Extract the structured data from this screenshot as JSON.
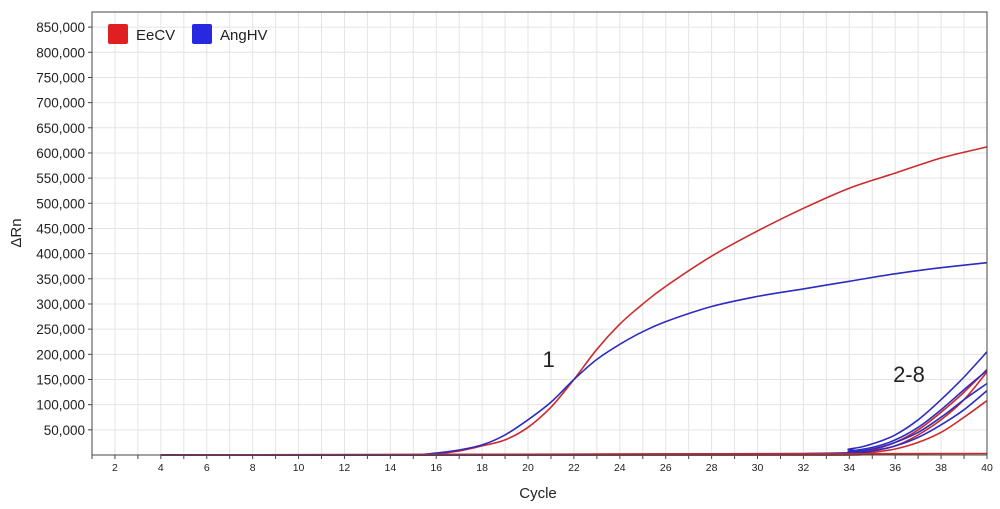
{
  "chart_data": {
    "type": "line",
    "xlabel": "Cycle",
    "ylabel": "ΔRn",
    "xlim": [
      1,
      40
    ],
    "ylim": [
      0,
      880000
    ],
    "x_ticks": [
      2,
      4,
      6,
      8,
      10,
      12,
      14,
      16,
      18,
      20,
      22,
      24,
      26,
      28,
      30,
      32,
      34,
      36,
      38,
      40
    ],
    "y_ticks": [
      50000,
      100000,
      150000,
      200000,
      250000,
      300000,
      350000,
      400000,
      450000,
      500000,
      550000,
      600000,
      650000,
      700000,
      750000,
      800000,
      850000
    ],
    "y_tick_labels": [
      "50,000",
      "100,000",
      "150,000",
      "200,000",
      "250,000",
      "300,000",
      "350,000",
      "400,000",
      "450,000",
      "500,000",
      "550,000",
      "600,000",
      "650,000",
      "700,000",
      "750,000",
      "800,000",
      "850,000"
    ],
    "legend_position": "top-left",
    "legend": [
      {
        "name": "EeCV",
        "color": "#e02020"
      },
      {
        "name": "AngHV",
        "color": "#2828e0"
      }
    ],
    "annotations": [
      {
        "text": "1",
        "x": 20.9,
        "y": 175000
      },
      {
        "text": "2-8",
        "x": 36.6,
        "y": 145000
      }
    ],
    "series": [
      {
        "name": "EeCV",
        "color": "#cc2b2b",
        "x": [
          4,
          14,
          16,
          17,
          18,
          19,
          20,
          21,
          22,
          23,
          24,
          25,
          26,
          28,
          30,
          32,
          34,
          36,
          38,
          40
        ],
        "y": [
          0,
          0,
          3000,
          8000,
          18000,
          30000,
          55000,
          95000,
          150000,
          210000,
          260000,
          300000,
          335000,
          395000,
          445000,
          490000,
          530000,
          560000,
          590000,
          612000
        ]
      },
      {
        "name": "AngHV",
        "color": "#2c2cc0",
        "x": [
          4,
          14,
          16,
          17,
          18,
          19,
          20,
          21,
          22,
          23,
          24,
          25,
          26,
          28,
          30,
          32,
          34,
          36,
          38,
          40
        ],
        "y": [
          0,
          0,
          4000,
          10000,
          20000,
          40000,
          70000,
          105000,
          150000,
          190000,
          220000,
          245000,
          265000,
          295000,
          315000,
          330000,
          345000,
          360000,
          372000,
          382000
        ]
      },
      {
        "name": "EeCV",
        "color": "#cc2b2b",
        "x": [
          4,
          32,
          34,
          35,
          36,
          37,
          38,
          39,
          40
        ],
        "y": [
          0,
          0,
          2000,
          5000,
          12000,
          25000,
          45000,
          75000,
          108000
        ]
      },
      {
        "name": "EeCV",
        "color": "#cc2b2b",
        "x": [
          4,
          32,
          34,
          35,
          36,
          37,
          38,
          39,
          40
        ],
        "y": [
          0,
          0,
          3000,
          8000,
          18000,
          40000,
          70000,
          110000,
          165000
        ]
      },
      {
        "name": "EeCV",
        "color": "#cc2b2b",
        "x": [
          4,
          32,
          34,
          35,
          36,
          37,
          38,
          39,
          40
        ],
        "y": [
          0,
          0,
          4000,
          10000,
          25000,
          50000,
          85000,
          125000,
          170000
        ]
      },
      {
        "name": "AngHV",
        "color": "#2c2cc0",
        "x": [
          4,
          32,
          34,
          35,
          36,
          37,
          38,
          39,
          40
        ],
        "y": [
          0,
          3000,
          12000,
          22000,
          40000,
          70000,
          110000,
          155000,
          205000
        ]
      },
      {
        "name": "AngHV",
        "color": "#2c2cc0",
        "x": [
          4,
          32,
          34,
          35,
          36,
          37,
          38,
          39,
          40
        ],
        "y": [
          0,
          2000,
          8000,
          15000,
          30000,
          55000,
          90000,
          130000,
          168000
        ]
      },
      {
        "name": "AngHV",
        "color": "#2c2cc0",
        "x": [
          4,
          32,
          34,
          35,
          36,
          37,
          38,
          39,
          40
        ],
        "y": [
          0,
          1000,
          5000,
          12000,
          25000,
          45000,
          75000,
          110000,
          142000
        ]
      },
      {
        "name": "AngHV",
        "color": "#2c2cc0",
        "x": [
          4,
          32,
          34,
          35,
          36,
          37,
          38,
          39,
          40
        ],
        "y": [
          0,
          500,
          3000,
          8000,
          18000,
          35000,
          60000,
          90000,
          128000
        ]
      },
      {
        "name": "EeCV",
        "color": "#cc2b2b",
        "x": [
          4,
          40
        ],
        "y": [
          0,
          3000
        ]
      }
    ]
  }
}
